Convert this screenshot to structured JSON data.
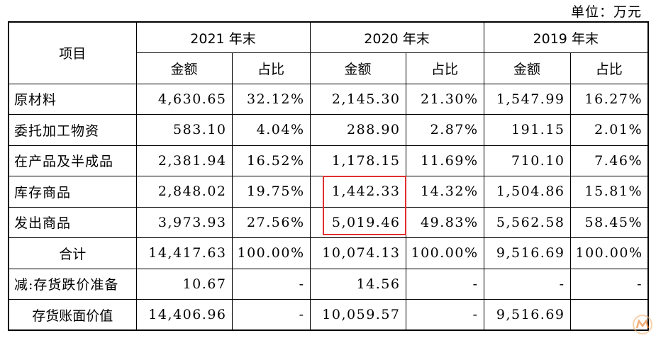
{
  "unit_label": "单位：万元",
  "header": {
    "item": "项目",
    "years": [
      "2021 年末",
      "2020 年末",
      "2019 年末"
    ],
    "amount": "金额",
    "ratio": "占比"
  },
  "rows": [
    {
      "label": "原材料",
      "cells": [
        "4,630.65",
        "32.12%",
        "2,145.30",
        "21.30%",
        "1,547.99",
        "16.27%"
      ]
    },
    {
      "label": "委托加工物资",
      "cells": [
        "583.10",
        "4.04%",
        "288.90",
        "2.87%",
        "191.15",
        "2.01%"
      ]
    },
    {
      "label": "在产品及半成品",
      "cells": [
        "2,381.94",
        "16.52%",
        "1,178.15",
        "11.69%",
        "710.10",
        "7.46%"
      ]
    },
    {
      "label": "库存商品",
      "cells": [
        "2,848.02",
        "19.75%",
        "1,442.33",
        "14.32%",
        "1,504.86",
        "15.81%"
      ]
    },
    {
      "label": "发出商品",
      "cells": [
        "3,973.93",
        "27.56%",
        "5,019.46",
        "49.83%",
        "5,562.58",
        "58.45%"
      ]
    },
    {
      "label": "合计",
      "cells": [
        "14,417.63",
        "100.00%",
        "10,074.13",
        "100.00%",
        "9,516.69",
        "100.00%"
      ]
    },
    {
      "label": "减:存货跌价准备",
      "cells": [
        "10.67",
        "-",
        "14.56",
        "-",
        "-",
        "-"
      ]
    },
    {
      "label": "存货账面价值",
      "cells": [
        "14,406.96",
        "-",
        "10,059.57",
        "-",
        "9,516.69",
        ""
      ]
    }
  ]
}
